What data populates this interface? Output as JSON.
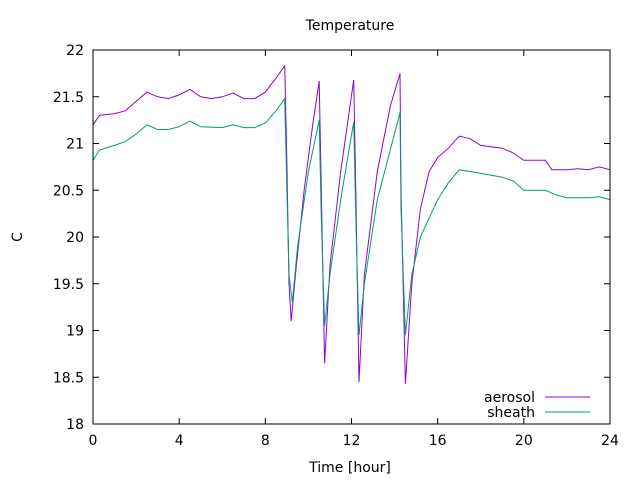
{
  "chart_data": {
    "type": "line",
    "title": "Temperature",
    "xlabel": "Time [hour]",
    "ylabel": "C",
    "xlim": [
      0,
      24
    ],
    "ylim": [
      18,
      22
    ],
    "xticks": [
      "0",
      "4",
      "8",
      "12",
      "16",
      "20",
      "24"
    ],
    "yticks": [
      "18",
      "18.5",
      "19",
      "19.5",
      "20",
      "20.5",
      "21",
      "21.5",
      "22"
    ],
    "grid": false,
    "legend_position": "bottom-right",
    "series": [
      {
        "name": "aerosol",
        "color": "#9400d3",
        "x": [
          0,
          0.3,
          1,
          1.5,
          2,
          2.5,
          3,
          3.5,
          4,
          4.5,
          5,
          5.5,
          6,
          6.5,
          7,
          7.5,
          8,
          8.5,
          8.9,
          9.0,
          9.1,
          9.2,
          9.4,
          9.8,
          10.2,
          10.5,
          10.6,
          10.75,
          11,
          11.5,
          12.1,
          12.2,
          12.35,
          12.6,
          13.2,
          13.8,
          14.25,
          14.3,
          14.5,
          14.8,
          15.2,
          15.6,
          16,
          16.5,
          17,
          17.5,
          18,
          19,
          19.5,
          20,
          21,
          21.3,
          22,
          22.5,
          23,
          23.5,
          24
        ],
        "y": [
          21.2,
          21.3,
          21.32,
          21.35,
          21.45,
          21.55,
          21.5,
          21.48,
          21.52,
          21.58,
          21.5,
          21.48,
          21.5,
          21.54,
          21.48,
          21.48,
          21.55,
          21.7,
          21.83,
          20.8,
          19.5,
          19.1,
          19.6,
          20.5,
          21.2,
          21.67,
          20.5,
          18.65,
          19.7,
          20.7,
          21.68,
          20.5,
          18.45,
          19.6,
          20.7,
          21.4,
          21.75,
          20.5,
          18.43,
          19.5,
          20.3,
          20.7,
          20.85,
          20.95,
          21.08,
          21.05,
          20.98,
          20.95,
          20.9,
          20.82,
          20.82,
          20.72,
          20.72,
          20.73,
          20.72,
          20.75,
          20.72
        ]
      },
      {
        "name": "sheath",
        "color": "#009e73",
        "x": [
          0,
          0.3,
          1,
          1.5,
          2,
          2.5,
          3,
          3.5,
          4,
          4.5,
          5,
          6,
          6.5,
          7,
          7.5,
          8,
          8.5,
          8.9,
          9.0,
          9.1,
          9.25,
          9.5,
          10,
          10.5,
          10.6,
          10.75,
          11,
          11.5,
          12.1,
          12.2,
          12.35,
          12.6,
          13.2,
          14.25,
          14.3,
          14.5,
          14.8,
          15.2,
          16,
          16.5,
          17,
          18,
          19,
          19.5,
          20,
          21,
          21.5,
          22,
          23,
          23.5,
          24
        ],
        "y": [
          20.82,
          20.93,
          20.98,
          21.02,
          21.1,
          21.2,
          21.15,
          21.15,
          21.18,
          21.24,
          21.18,
          21.17,
          21.2,
          21.17,
          21.17,
          21.22,
          21.35,
          21.48,
          20.5,
          19.6,
          19.3,
          19.9,
          20.7,
          21.25,
          20.2,
          19.05,
          19.6,
          20.4,
          21.23,
          20.2,
          18.95,
          19.5,
          20.4,
          21.33,
          20.3,
          18.95,
          19.6,
          20.0,
          20.4,
          20.58,
          20.72,
          20.68,
          20.64,
          20.6,
          20.5,
          20.5,
          20.45,
          20.42,
          20.42,
          20.43,
          20.4
        ]
      }
    ]
  }
}
